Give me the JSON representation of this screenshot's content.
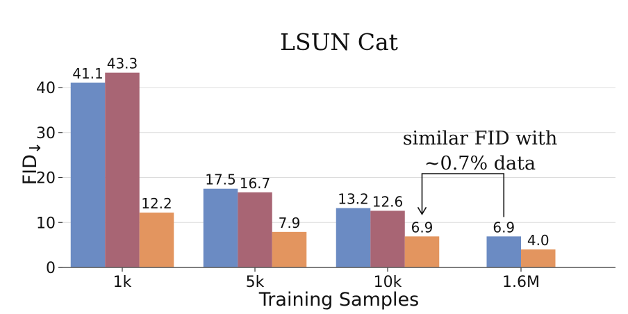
{
  "chart_data": {
    "type": "bar",
    "title": "LSUN Cat",
    "xlabel": "Training Samples",
    "ylabel": "FID",
    "ylabel_arrow": "↓",
    "ylim": [
      0,
      45
    ],
    "yticks": [
      0,
      10,
      20,
      30,
      40
    ],
    "grid": true,
    "categories": [
      "1k",
      "5k",
      "10k",
      "1.6M"
    ],
    "series": [
      {
        "name": "series-blue",
        "color": "#6b8bc3",
        "values": [
          41.1,
          17.5,
          13.2,
          6.9
        ],
        "labels": [
          "41.1",
          "17.5",
          "13.2",
          "6.9"
        ]
      },
      {
        "name": "series-red",
        "color": "#a86574",
        "values": [
          43.3,
          16.7,
          12.6,
          null
        ],
        "labels": [
          "43.3",
          "16.7",
          "12.6",
          ""
        ]
      },
      {
        "name": "series-orange",
        "color": "#e3955f",
        "values": [
          12.2,
          7.9,
          6.9,
          4.0
        ],
        "labels": [
          "12.2",
          "7.9",
          "6.9",
          "4.0"
        ]
      }
    ],
    "annotation": {
      "line1": "similar FID with",
      "line2": "~0.7% data",
      "from": {
        "category": "1.6M",
        "series": "series-blue"
      },
      "to": {
        "category": "10k",
        "series": "series-orange"
      }
    }
  }
}
